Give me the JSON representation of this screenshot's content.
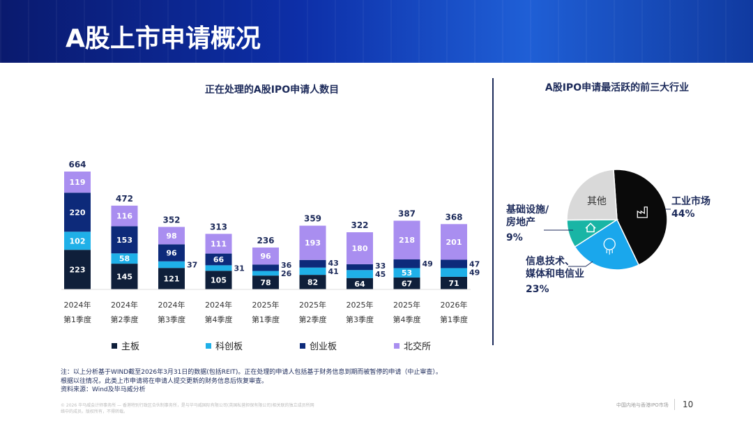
{
  "header": {
    "title": "A股上市申请概况"
  },
  "chart_data": [
    {
      "type": "bar",
      "stacked": true,
      "title": "正在处理的A股IPO申请人数目",
      "categories": [
        [
          "2024年",
          "第1季度"
        ],
        [
          "2024年",
          "第2季度"
        ],
        [
          "2024年",
          "第3季度"
        ],
        [
          "2024年",
          "第4季度"
        ],
        [
          "2025年",
          "第1季度"
        ],
        [
          "2025年",
          "第2季度"
        ],
        [
          "2025年",
          "第3季度"
        ],
        [
          "2025年",
          "第4季度"
        ],
        [
          "2026年",
          "第1季度"
        ]
      ],
      "series": [
        {
          "name": "主板",
          "color": "#0f1f3a",
          "values": [
            223,
            145,
            121,
            105,
            78,
            82,
            64,
            67,
            71
          ]
        },
        {
          "name": "科创板",
          "color": "#1fb0e8",
          "values": [
            102,
            58,
            37,
            31,
            26,
            41,
            45,
            53,
            49
          ]
        },
        {
          "name": "创业板",
          "color": "#0d2a7a",
          "values": [
            220,
            153,
            96,
            66,
            36,
            43,
            33,
            49,
            47
          ]
        },
        {
          "name": "北交所",
          "color": "#a98ef0",
          "values": [
            119,
            116,
            98,
            111,
            96,
            193,
            180,
            218,
            201
          ]
        }
      ],
      "totals": [
        664,
        472,
        352,
        313,
        236,
        359,
        322,
        387,
        368
      ],
      "legend": "bottom",
      "grid": false
    },
    {
      "type": "pie",
      "title": "A股IPO申请最活跃的前三大行业",
      "slices": [
        {
          "label": "工业市场",
          "value": 44,
          "pct": "44%",
          "color": "#0a0a0a",
          "icon": "factory-icon"
        },
        {
          "label": "信息技术、媒体和电信业",
          "label_lines": [
            "信息技术、",
            "媒体和电信业"
          ],
          "value": 23,
          "pct": "23%",
          "color": "#1aa7ec",
          "icon": "cloud-network-icon"
        },
        {
          "label": "基础设施/房地产",
          "label_lines": [
            "基础设施/",
            "房地产"
          ],
          "value": 9,
          "pct": "9%",
          "color": "#19b5a5",
          "icon": "house-icon"
        },
        {
          "label": "其他",
          "value": 24,
          "color": "#d9d9d9"
        }
      ]
    }
  ],
  "notes": [
    "注：以上分析基于WIND截至2026年3月31日的数据(包括REIT)。正在处理的申请人包括基于财务信息到期而被暂停的申请（中止审查）。",
    "根据以往情况，此类上市申请将在申请人提交更新的财务信息后恢复审查。",
    "资料来源：Wind及毕马威分析"
  ],
  "fine_print": [
    "© 2026 毕马威会计师事务所 — 香港特别行政区合伙制事务所，是与毕马威国际有限公司(英国私营担保有限公司)相关联的独立成员所网",
    "络中的成员。版权所有，不得转载。"
  ],
  "footer": {
    "text": "中国内地与香港IPO市场",
    "page": "10"
  }
}
